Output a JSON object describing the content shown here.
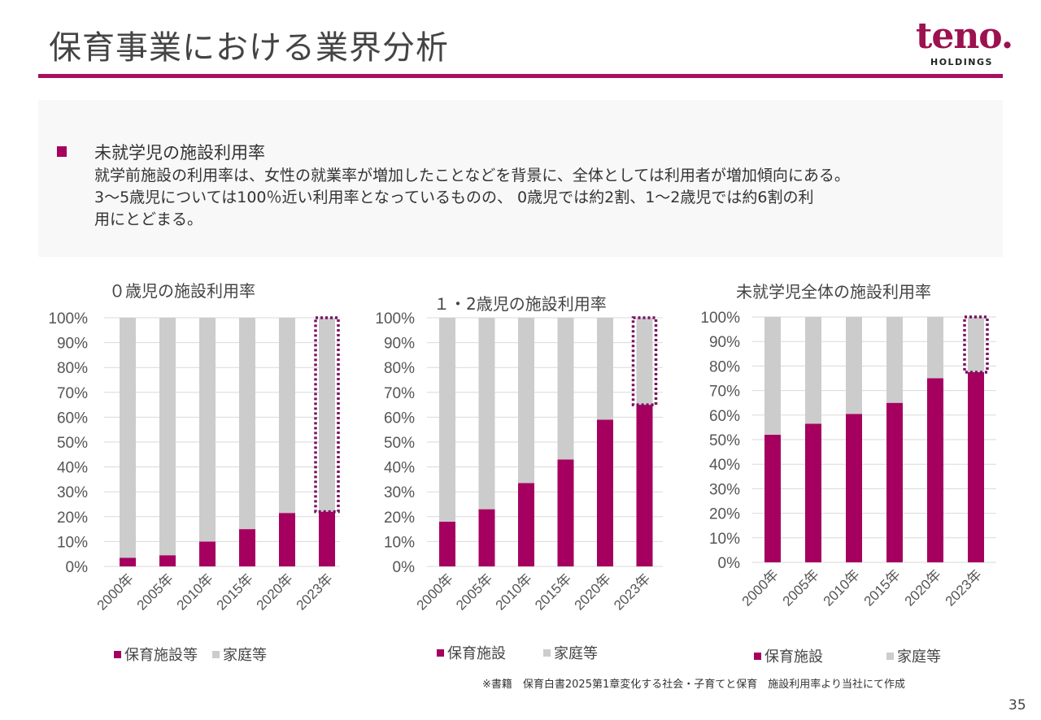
{
  "header": {
    "title": "保育事業における業界分析",
    "logo_text": "teno.",
    "logo_sub": "HOLDINGS",
    "accent_color": "#a8105f"
  },
  "summary": {
    "heading": "未就学児の施設利用率",
    "lines": [
      "就学前施設の利用率は、女性の就業率が増加したことなどを背景に、全体としては利用者が増加傾向にある。",
      "3～5歳児については100％近い利用率となっているものの、 0歳児では約2割、1～2歳児では約6割の利",
      "用にとどまる。"
    ]
  },
  "colors": {
    "facility": "#a5005f",
    "home": "#cccccc",
    "highlight_border": "#7a1060"
  },
  "chart_data": [
    {
      "type": "bar",
      "stacked": true,
      "title": "０歳児の施設利用率",
      "categories": [
        "2000年",
        "2005年",
        "2010年",
        "2015年",
        "2020年",
        "2023年"
      ],
      "series": [
        {
          "name": "保育施設等",
          "values": [
            3.5,
            4.5,
            10,
            15,
            21.5,
            22
          ]
        },
        {
          "name": "家庭等",
          "values": [
            96.5,
            95.5,
            90,
            85,
            78.5,
            78
          ]
        }
      ],
      "yticks": [
        "0%",
        "10%",
        "20%",
        "30%",
        "40%",
        "50%",
        "60%",
        "70%",
        "80%",
        "90%",
        "100%"
      ],
      "ylim": [
        0,
        100
      ],
      "xlabel": "",
      "ylabel": "",
      "grid": true,
      "legend": "bottom",
      "highlight": {
        "category": "2023年",
        "series": "家庭等",
        "style": "dotted"
      }
    },
    {
      "type": "bar",
      "stacked": true,
      "title": "１・2歳児の施設利用率",
      "categories": [
        "2000年",
        "2005年",
        "2010年",
        "2015年",
        "2020年",
        "2023年"
      ],
      "series": [
        {
          "name": "保育施設",
          "values": [
            18,
            23,
            33.5,
            43,
            59,
            65
          ]
        },
        {
          "name": "家庭等",
          "values": [
            82,
            77,
            66.5,
            57,
            41,
            35
          ]
        }
      ],
      "yticks": [
        "0%",
        "10%",
        "20%",
        "30%",
        "40%",
        "50%",
        "60%",
        "70%",
        "80%",
        "90%",
        "100%"
      ],
      "ylim": [
        0,
        100
      ],
      "xlabel": "",
      "ylabel": "",
      "grid": true,
      "legend": "bottom",
      "highlight": {
        "category": "2023年",
        "series": "家庭等",
        "style": "dotted"
      }
    },
    {
      "type": "bar",
      "stacked": true,
      "title": "未就学児全体の施設利用率",
      "categories": [
        "2000年",
        "2005年",
        "2010年",
        "2015年",
        "2020年",
        "2023年"
      ],
      "series": [
        {
          "name": "保育施設",
          "values": [
            52,
            56.5,
            60.5,
            65,
            75,
            77.5
          ]
        },
        {
          "name": "家庭等",
          "values": [
            48,
            43.5,
            39.5,
            35,
            25,
            22.5
          ]
        }
      ],
      "yticks": [
        "0%",
        "10%",
        "20%",
        "30%",
        "40%",
        "50%",
        "60%",
        "70%",
        "80%",
        "90%",
        "100%"
      ],
      "ylim": [
        0,
        100
      ],
      "xlabel": "",
      "ylabel": "",
      "grid": true,
      "legend": "bottom",
      "highlight": {
        "category": "2023年",
        "series": "家庭等",
        "style": "dotted"
      }
    }
  ],
  "footer": {
    "source": "※書籍　保育白書2025第1章変化する社会・子育てと保育　施設利用率より当社にて作成",
    "page_number": "35"
  }
}
